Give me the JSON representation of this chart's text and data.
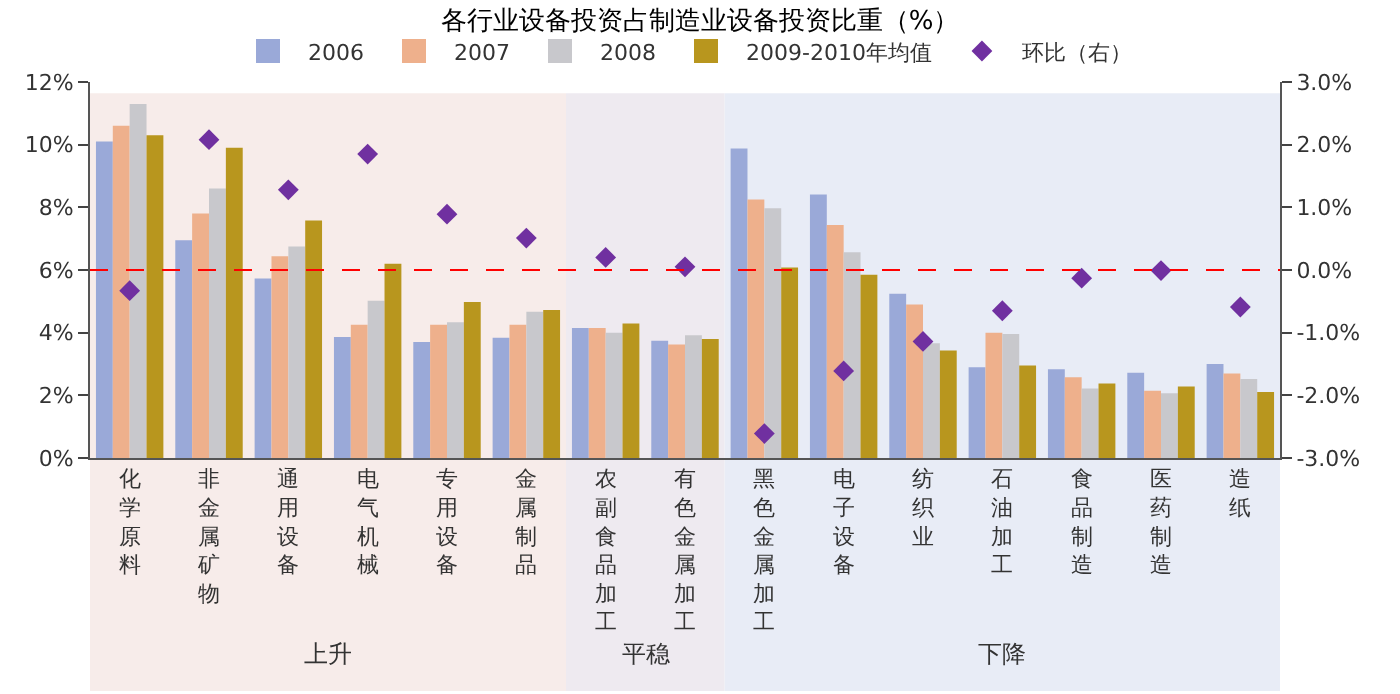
{
  "chart_data": {
    "type": "bar",
    "title": "各行业设备投资占制造业设备投资比重（%）",
    "categories": [
      "化学原料",
      "非金属矿物",
      "通用设备",
      "电气机械",
      "专用设备",
      "金属制品",
      "农副食品加工",
      "有色金属加工",
      "黑色金属加工",
      "电子设备",
      "纺织业",
      "石油加工",
      "食品制造",
      "医药制造",
      "造纸"
    ],
    "series": [
      {
        "name": "2006",
        "color": "#9aa9d8",
        "values": [
          10.1,
          6.95,
          5.73,
          3.86,
          3.7,
          3.84,
          4.15,
          3.74,
          9.88,
          8.41,
          5.24,
          2.9,
          2.83,
          2.72,
          3.0
        ]
      },
      {
        "name": "2007",
        "color": "#eeb08c",
        "values": [
          10.6,
          7.8,
          6.44,
          4.25,
          4.25,
          4.25,
          4.15,
          3.62,
          8.25,
          7.44,
          4.9,
          4.0,
          2.58,
          2.15,
          2.7
        ]
      },
      {
        "name": "2008",
        "color": "#c8c8cc",
        "values": [
          11.3,
          8.6,
          6.75,
          5.02,
          4.33,
          4.67,
          4.0,
          3.92,
          7.97,
          6.57,
          3.66,
          3.96,
          2.22,
          2.07,
          2.52
        ]
      },
      {
        "name": "2009-2010年均值",
        "color": "#b8961e",
        "values": [
          10.3,
          9.9,
          7.58,
          6.2,
          4.98,
          4.72,
          4.29,
          3.8,
          6.08,
          5.85,
          3.43,
          2.95,
          2.38,
          2.28,
          2.11
        ]
      },
      {
        "name": "环比（右）",
        "type": "scatter",
        "axis": "y2",
        "marker": "diamond",
        "color": "#7030a0",
        "values": [
          -0.33,
          2.08,
          1.28,
          1.85,
          0.89,
          0.51,
          0.2,
          0.05,
          -2.61,
          -1.61,
          -1.14,
          -0.65,
          -0.13,
          -0.01,
          -0.59
        ]
      }
    ],
    "ylim": [
      0,
      12
    ],
    "yticks": [
      {
        "value": 0,
        "label": "0%"
      },
      {
        "value": 2,
        "label": "2%"
      },
      {
        "value": 4,
        "label": "4%"
      },
      {
        "value": 6,
        "label": "6%"
      },
      {
        "value": 8,
        "label": "8%"
      },
      {
        "value": 10,
        "label": "10%"
      },
      {
        "value": 12,
        "label": "12%"
      }
    ],
    "y2lim": [
      -3,
      3
    ],
    "y2ticks": [
      {
        "value": -3,
        "label": "-3.0%"
      },
      {
        "value": -2,
        "label": "-2.0%"
      },
      {
        "value": -1,
        "label": "-1.0%"
      },
      {
        "value": 0,
        "label": "0.0%"
      },
      {
        "value": 1,
        "label": "1.0%"
      },
      {
        "value": 2,
        "label": "2.0%"
      },
      {
        "value": 3,
        "label": "3.0%"
      }
    ],
    "ref_lines": [
      {
        "axis": "y2",
        "value": 0,
        "color": "#ff0000",
        "line_style": "dashed"
      }
    ],
    "bands": [
      {
        "axis": "x",
        "from": "化学原料",
        "to": "金属制品",
        "label": "上升",
        "color": "#f7ecea"
      },
      {
        "axis": "x",
        "from": "农副食品加工",
        "to": "有色金属加工",
        "label": "平稳",
        "color": "#eeeaf0"
      },
      {
        "axis": "x",
        "from": "黑色金属加工",
        "to": "造纸",
        "label": "下降",
        "color": "#e8ecf6"
      }
    ],
    "legend": "top",
    "grid": false
  }
}
